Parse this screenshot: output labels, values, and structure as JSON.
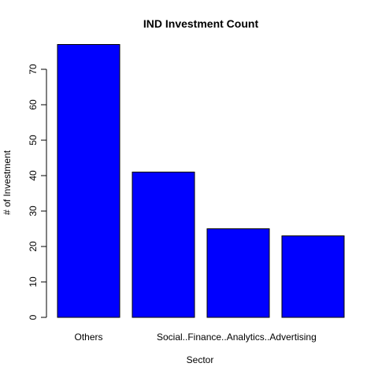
{
  "chart_data": {
    "type": "bar",
    "title": "IND Investment Count",
    "xlabel": "Sector",
    "ylabel": "# of Investment",
    "categories": [
      "Others",
      "Social..Finance..Analytics..Advertising",
      "",
      ""
    ],
    "values": [
      77,
      41,
      25,
      23
    ],
    "ylim": [
      0,
      80
    ],
    "yticks": [
      0,
      10,
      20,
      30,
      40,
      50,
      60,
      70
    ],
    "bar_color": "#0000ff",
    "grid": false,
    "legend": "none"
  }
}
